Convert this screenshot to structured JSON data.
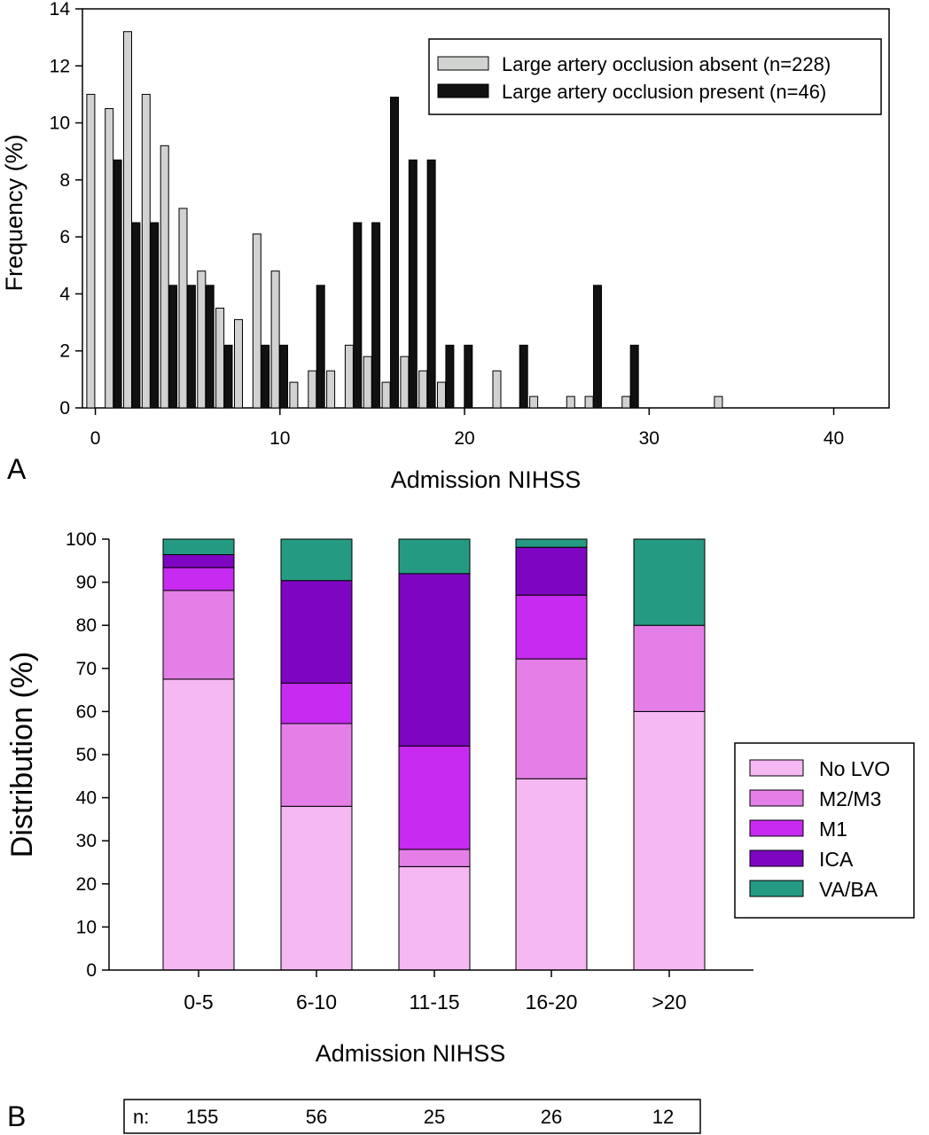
{
  "chart_data": [
    {
      "panel_label": "A",
      "type": "bar",
      "xlabel": "Admission NIHSS",
      "ylabel": "Frequency (%)",
      "xlim": [
        -0.7,
        43
      ],
      "ylim": [
        0,
        14
      ],
      "x_ticks": [
        0,
        10,
        20,
        30,
        40
      ],
      "y_ticks": [
        0,
        2,
        4,
        6,
        8,
        10,
        12,
        14
      ],
      "legend_position": "top-right",
      "series": [
        {
          "name": "Large artery occlusion absent (n=228)",
          "color": "#d0d3d0",
          "x": [
            0,
            1,
            2,
            3,
            4,
            5,
            6,
            7,
            8,
            9,
            10,
            11,
            12,
            13,
            14,
            15,
            16,
            17,
            18,
            19,
            22,
            24,
            26,
            27,
            29,
            34
          ],
          "values": [
            11.0,
            10.5,
            13.2,
            11.0,
            9.2,
            7.0,
            4.8,
            3.5,
            3.1,
            6.1,
            4.8,
            0.9,
            1.3,
            1.3,
            2.2,
            1.8,
            0.9,
            1.8,
            1.3,
            0.9,
            1.3,
            0.4,
            0.4,
            0.4,
            0.4,
            0.4
          ]
        },
        {
          "name": "Large artery occlusion present (n=46)",
          "color": "#111111",
          "x": [
            1,
            2,
            3,
            4,
            5,
            6,
            7,
            9,
            10,
            12,
            14,
            15,
            16,
            17,
            18,
            19,
            20,
            23,
            27,
            29
          ],
          "values": [
            8.7,
            6.5,
            6.5,
            4.3,
            4.3,
            4.3,
            2.2,
            2.2,
            2.2,
            4.3,
            6.5,
            6.5,
            10.9,
            8.7,
            8.7,
            2.2,
            2.2,
            2.2,
            4.3,
            2.2
          ]
        }
      ]
    },
    {
      "panel_label": "B",
      "type": "bar",
      "stacked": true,
      "xlabel": "Admission NIHSS",
      "ylabel": "Distribution (%)",
      "ylim": [
        0,
        100
      ],
      "y_ticks": [
        0,
        10,
        20,
        30,
        40,
        50,
        60,
        70,
        80,
        90,
        100
      ],
      "legend_position": "right",
      "categories": [
        "0-5",
        "6-10",
        "11-15",
        "16-20",
        ">20"
      ],
      "series": [
        {
          "name": "No LVO",
          "color": "#f5b8f3",
          "values": [
            67.5,
            38.0,
            24.0,
            44.4,
            60.0
          ]
        },
        {
          "name": "M2/M3",
          "color": "#e57fe8",
          "values": [
            20.6,
            19.2,
            4.0,
            27.8,
            20.0
          ]
        },
        {
          "name": "M1",
          "color": "#c72af0",
          "values": [
            5.3,
            9.4,
            24.0,
            14.8,
            0.0
          ]
        },
        {
          "name": "ICA",
          "color": "#7e06c2",
          "values": [
            3.0,
            23.8,
            40.0,
            11.1,
            0.0
          ]
        },
        {
          "name": "VA/BA",
          "color": "#259a82",
          "values": [
            3.6,
            9.6,
            8.0,
            1.9,
            20.0
          ]
        }
      ],
      "n_table": {
        "label": "n:",
        "values": [
          "155",
          "56",
          "25",
          "26",
          "12"
        ]
      }
    }
  ]
}
